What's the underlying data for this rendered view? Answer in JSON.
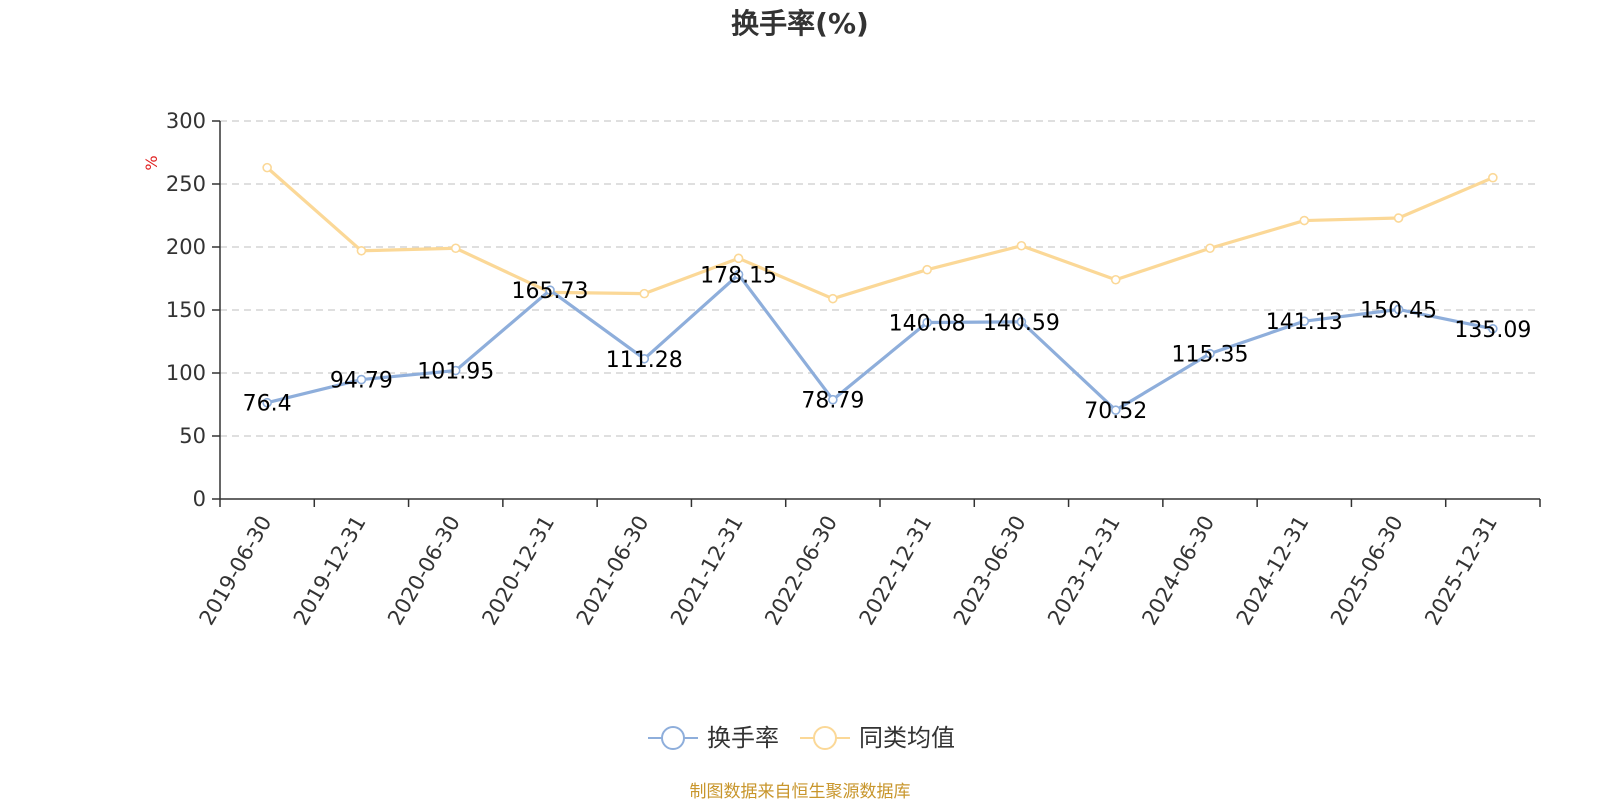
{
  "chart_data": {
    "type": "line",
    "title": "换手率(%)",
    "ylabel": "%",
    "xlabel": "",
    "ylim": [
      0,
      300
    ],
    "yticks": [
      0,
      50,
      100,
      150,
      200,
      250,
      300
    ],
    "categories": [
      "2019-06-30",
      "2019-12-31",
      "2020-06-30",
      "2020-12-31",
      "2021-06-30",
      "2021-12-31",
      "2022-06-30",
      "2022-12-31",
      "2023-06-30",
      "2023-12-31",
      "2024-06-30",
      "2024-12-31",
      "2025-06-30",
      "2025-12-31"
    ],
    "grid": true,
    "legend_position": "bottom-center",
    "series": [
      {
        "name": "换手率",
        "color": "#8eaedb",
        "show_labels": true,
        "values": [
          76.4,
          94.79,
          101.95,
          165.73,
          111.28,
          178.15,
          78.79,
          140.08,
          140.59,
          70.52,
          115.35,
          141.13,
          150.45,
          135.09
        ]
      },
      {
        "name": "同类均值",
        "color": "#fbd897",
        "show_labels": false,
        "values": [
          263,
          197,
          199,
          164,
          163,
          191,
          159,
          182,
          201,
          174,
          199,
          221,
          223,
          255
        ]
      }
    ]
  },
  "unit_color": "#e02020",
  "source_text": "制图数据来自恒生聚源数据库",
  "source_color": "#c8962c"
}
